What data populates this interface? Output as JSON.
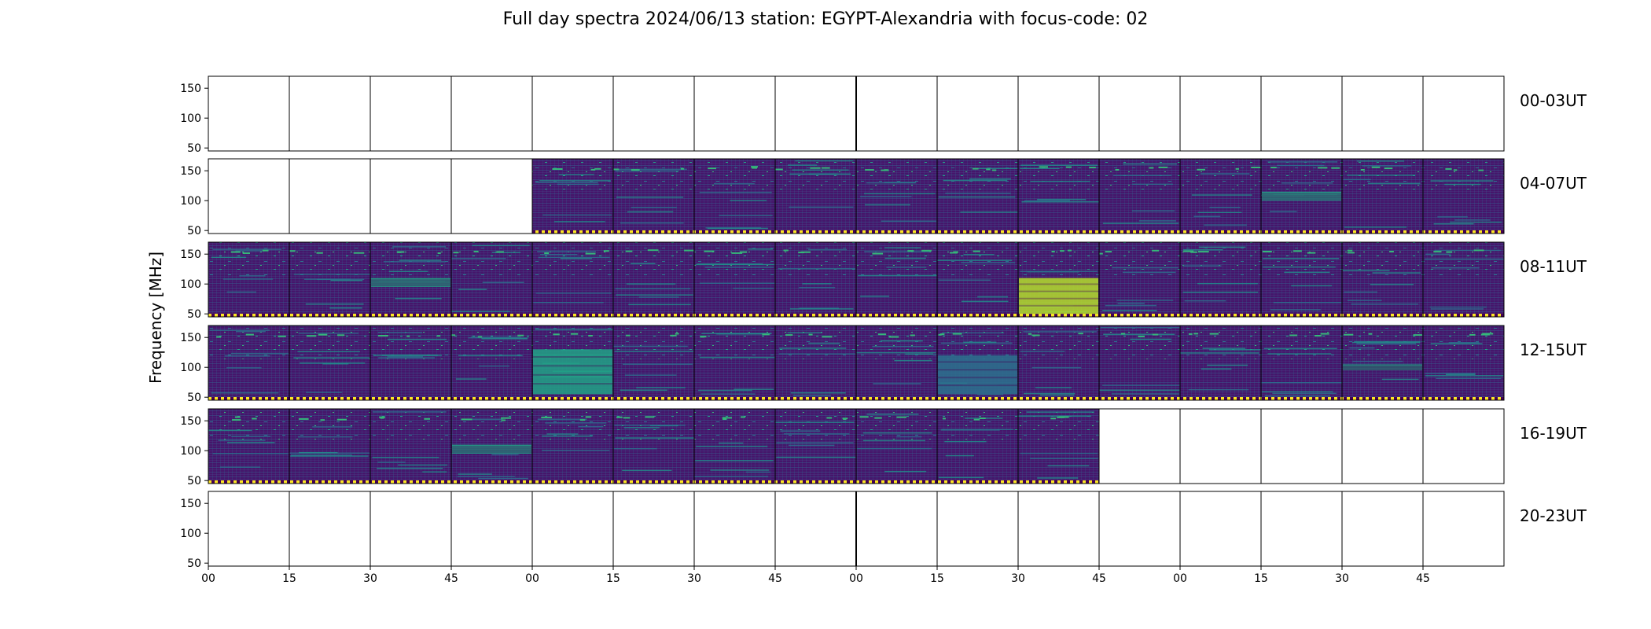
{
  "chart_data": {
    "type": "heatmap",
    "title": "Full day spectra 2024/06/13 station: EGYPT-Alexandria with focus-code: 02",
    "ylabel": "Frequency [MHz]",
    "xlabel": "",
    "ylim": [
      45,
      170
    ],
    "yticks": [
      "50",
      "100",
      "150"
    ],
    "xticks": [
      "00",
      "15",
      "30",
      "45",
      "00",
      "15",
      "30",
      "45",
      "00",
      "15",
      "30",
      "45",
      "00",
      "15",
      "30",
      "45"
    ],
    "colormap": "viridis",
    "colors": {
      "empty": "#ffffff",
      "low": "#440154",
      "background": "#45166b",
      "mid": "#2c728e",
      "high": "#21a386",
      "peak": "#b5de2b",
      "marker": "#fde725"
    },
    "rows": [
      {
        "label": "00-03UT",
        "panels": [
          0,
          0,
          0,
          0,
          0,
          0,
          0,
          0,
          0,
          0,
          0,
          0,
          0,
          0,
          0,
          0
        ]
      },
      {
        "label": "04-07UT",
        "panels": [
          0,
          0,
          0,
          0,
          1,
          1,
          1,
          1,
          1,
          1,
          1,
          1,
          1,
          1,
          1,
          1
        ]
      },
      {
        "label": "08-11UT",
        "panels": [
          1,
          1,
          1,
          1,
          1,
          1,
          1,
          1,
          1,
          1,
          1,
          1,
          1,
          1,
          1,
          1
        ]
      },
      {
        "label": "12-15UT",
        "panels": [
          1,
          1,
          1,
          1,
          1,
          1,
          1,
          1,
          1,
          1,
          1,
          1,
          1,
          1,
          1,
          1
        ]
      },
      {
        "label": "16-19UT",
        "panels": [
          1,
          1,
          1,
          1,
          1,
          1,
          1,
          1,
          1,
          1,
          1,
          0,
          0,
          0,
          0,
          0
        ]
      },
      {
        "label": "20-23UT",
        "panels": [
          0,
          0,
          0,
          0,
          0,
          0,
          0,
          0,
          0,
          0,
          0,
          0,
          0,
          0,
          0,
          0
        ]
      }
    ],
    "bursts": [
      {
        "row": 2,
        "col": 10,
        "fmin": 50,
        "fmax": 110,
        "level": "peak"
      },
      {
        "row": 3,
        "col": 4,
        "fmin": 55,
        "fmax": 130,
        "level": "high"
      },
      {
        "row": 3,
        "col": 9,
        "fmin": 55,
        "fmax": 120,
        "level": "mid"
      },
      {
        "row": 1,
        "col": 13,
        "fmin": 100,
        "fmax": 115,
        "level": "high"
      },
      {
        "row": 2,
        "col": 2,
        "fmin": 95,
        "fmax": 110,
        "level": "high"
      },
      {
        "row": 3,
        "col": 14,
        "fmin": 95,
        "fmax": 105,
        "level": "high"
      },
      {
        "row": 4,
        "col": 3,
        "fmin": 95,
        "fmax": 110,
        "level": "high"
      }
    ]
  }
}
